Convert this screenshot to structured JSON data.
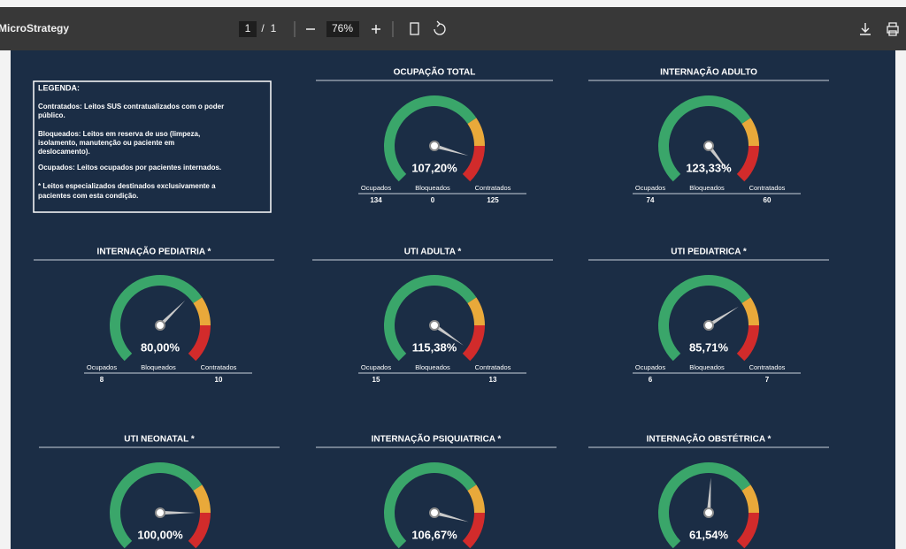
{
  "toolbar": {
    "app_name": "MicroStrategy",
    "page_current": "1",
    "page_separator": "/",
    "page_total": "1",
    "zoom": "76%"
  },
  "legend": {
    "title": "LEGENDA:",
    "items": [
      [
        "Contratados: Leitos SUS contratualizados com o poder",
        "público."
      ],
      [
        "Bloqueados: Leitos em reserva de uso (limpeza,",
        "isolamento, manutenção ou paciente em",
        "deslocamento)."
      ],
      [
        "Ocupados: Leitos ocupados por pacientes internados."
      ],
      [
        "* Leitos especializados destinados exclusivamente a",
        "pacientes com esta condição."
      ]
    ]
  },
  "column_labels": [
    "Ocupados",
    "Bloqueados",
    "Contratados"
  ],
  "gauge_scale": {
    "min": 0,
    "max": 120,
    "bands": [
      {
        "from": 0,
        "to": 85,
        "color": "#3aa66a"
      },
      {
        "from": 85,
        "to": 100,
        "color": "#e9a93a"
      },
      {
        "from": 100,
        "to": 120,
        "color": "#d22b2b"
      }
    ]
  },
  "gauges": [
    {
      "title": "OCUPAÇÃO TOTAL",
      "value": 107.2,
      "value_label": "107,20%",
      "counts": [
        "134",
        "0",
        "125"
      ]
    },
    {
      "title": "INTERNAÇÃO ADULTO",
      "value": 123.33,
      "value_label": "123,33%",
      "counts": [
        "74",
        null,
        "60"
      ]
    },
    {
      "title": "INTERNAÇÃO PEDIATRIA *",
      "value": 80,
      "value_label": "80,00%",
      "counts": [
        "8",
        null,
        "10"
      ]
    },
    {
      "title": "UTI ADULTA *",
      "value": 115.38,
      "value_label": "115,38%",
      "counts": [
        "15",
        null,
        "13"
      ]
    },
    {
      "title": "UTI PEDIATRICA *",
      "value": 85.71,
      "value_label": "85,71%",
      "counts": [
        "6",
        null,
        "7"
      ]
    },
    {
      "title": "UTI NEONATAL *",
      "value": 100,
      "value_label": "100,00%"
    },
    {
      "title": "INTERNAÇÃO PSIQUIATRICA *",
      "value": 106.67,
      "value_label": "106,67%"
    },
    {
      "title": "INTERNAÇÃO OBSTÉTRICA *",
      "value": 61.54,
      "value_label": "61,54%"
    }
  ]
}
